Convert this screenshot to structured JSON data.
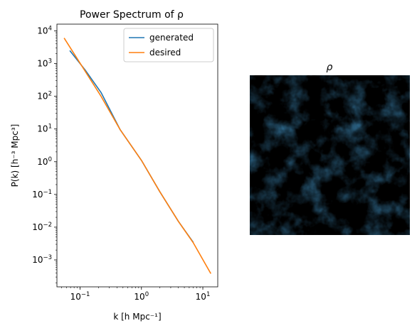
{
  "chart_data": [
    {
      "type": "line",
      "title": "Power Spectrum of ρ",
      "xlabel": "k [h Mpc⁻¹]",
      "ylabel": "P(k) [h⁻³ Mpc³]",
      "xscale": "log",
      "yscale": "log",
      "xlim": [
        0.042,
        17.5
      ],
      "ylim": [
        0.00015,
        16000
      ],
      "grid": false,
      "legend_position": "top-right",
      "xticks": [
        {
          "value": 0.1,
          "base": "10",
          "exp": "−1"
        },
        {
          "value": 1,
          "base": "10",
          "exp": "0"
        },
        {
          "value": 10,
          "base": "10",
          "exp": "1"
        }
      ],
      "yticks": [
        {
          "value": 0.001,
          "base": "10",
          "exp": "−3"
        },
        {
          "value": 0.01,
          "base": "10",
          "exp": "−2"
        },
        {
          "value": 0.1,
          "base": "10",
          "exp": "−1"
        },
        {
          "value": 1,
          "base": "10",
          "exp": "0"
        },
        {
          "value": 10,
          "base": "10",
          "exp": "1"
        },
        {
          "value": 100,
          "base": "10",
          "exp": "2"
        },
        {
          "value": 1000,
          "base": "10",
          "exp": "3"
        },
        {
          "value": 10000,
          "base": "10",
          "exp": "4"
        }
      ],
      "series": [
        {
          "name": "generated",
          "color": "#1f77b4",
          "x": [
            0.068,
            0.12,
            0.22,
            0.45,
            1.0,
            2.0,
            4.0,
            7.0
          ],
          "y": [
            2500,
            650,
            130,
            9.5,
            1.1,
            0.12,
            0.015,
            0.0034
          ]
        },
        {
          "name": "desired",
          "color": "#ff7f0e",
          "x": [
            0.055,
            0.12,
            0.22,
            0.45,
            1.0,
            2.0,
            4.0,
            7.0,
            13.5
          ],
          "y": [
            6000,
            600,
            100,
            9.5,
            1.1,
            0.12,
            0.015,
            0.0033,
            0.00038
          ]
        }
      ]
    },
    {
      "type": "heatmap",
      "title": "ρ",
      "colormap": "viridis"
    }
  ]
}
